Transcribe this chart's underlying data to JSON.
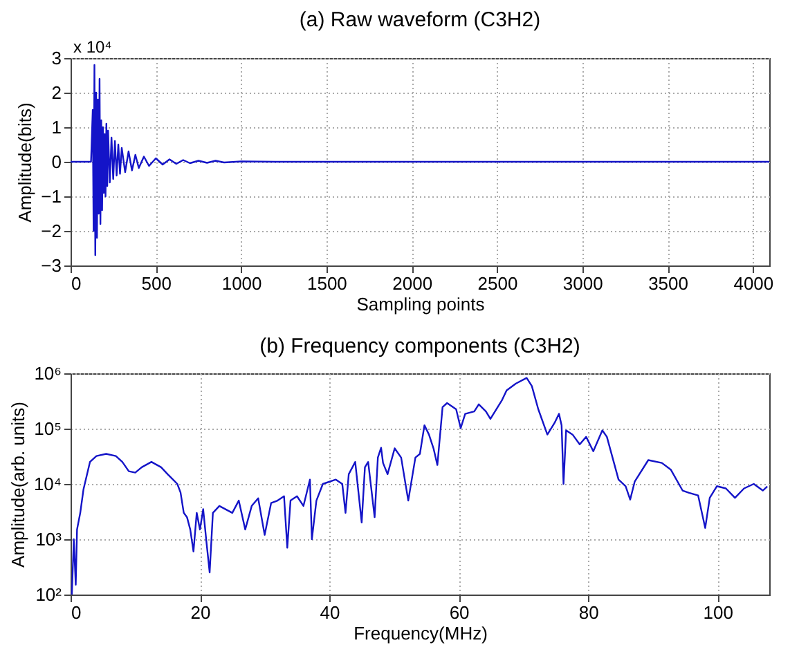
{
  "chart_data": [
    {
      "type": "line",
      "title": "(a) Raw waveform (C3H2)",
      "xlabel": "Sampling points",
      "ylabel": "Amplitude(bits)",
      "annotations": [
        "x 10⁴"
      ],
      "grid": true,
      "color": "#1414c8",
      "x": [
        0,
        120,
        130,
        135,
        140,
        145,
        150,
        155,
        160,
        165,
        170,
        175,
        180,
        185,
        190,
        195,
        200,
        205,
        210,
        215,
        220,
        230,
        240,
        250,
        260,
        270,
        280,
        290,
        300,
        320,
        340,
        360,
        380,
        400,
        430,
        460,
        500,
        540,
        580,
        620,
        660,
        700,
        750,
        800,
        850,
        900,
        1000,
        1200,
        4096
      ],
      "values": [
        0,
        0,
        1.5,
        -2,
        2.8,
        -2.7,
        2,
        -2.2,
        1.8,
        -1.5,
        2.4,
        -1.8,
        1.2,
        -1.4,
        1,
        -0.9,
        0.8,
        -1,
        1.1,
        -0.7,
        0.9,
        -0.6,
        0.7,
        -0.5,
        0.6,
        -0.4,
        0.5,
        -0.35,
        0.4,
        -0.3,
        0.3,
        -0.25,
        0.2,
        -0.18,
        0.15,
        -0.12,
        0.1,
        -0.08,
        0.07,
        -0.06,
        0.05,
        -0.04,
        0.03,
        -0.03,
        0.03,
        -0.02,
        0.01,
        0,
        0
      ],
      "xlim": [
        0,
        4096
      ],
      "xticks": [
        0,
        500,
        1000,
        1500,
        2000,
        2500,
        3000,
        3500,
        4000
      ],
      "ylim": [
        -3,
        3
      ],
      "yticks": [
        -3,
        -2,
        -1,
        0,
        1,
        2,
        3
      ]
    },
    {
      "type": "line",
      "title": "(b) Frequency components (C3H2)",
      "xlabel": "Frequency(MHz)",
      "ylabel": "Amplitude(arb. units)",
      "grid": true,
      "log": true,
      "color": "#1414c8",
      "x": [
        0.2,
        0.5,
        0.8,
        1,
        1.5,
        2,
        3,
        4,
        5.5,
        7,
        8,
        9,
        10,
        11,
        12.5,
        14,
        15,
        16.5,
        17,
        17.5,
        18,
        18.5,
        19,
        19.5,
        20,
        20.5,
        21,
        21.5,
        22,
        23,
        25,
        26,
        27,
        28,
        29,
        30,
        31,
        32,
        33,
        33.5,
        34,
        35,
        36,
        37,
        37.3,
        38,
        39,
        41,
        42,
        42.5,
        43,
        44,
        45,
        45.5,
        46,
        47,
        47.5,
        48,
        48.3,
        49,
        50.1,
        51.1,
        52.2,
        53.3,
        54,
        54.7,
        55.4,
        56.1,
        56.7,
        57.5,
        58.2,
        59.6,
        60.3,
        61,
        62.4,
        63.1,
        64.2,
        64.9,
        66.7,
        67.4,
        68.8,
        70.5,
        71.3,
        72.3,
        73.7,
        74.8,
        75.5,
        75.9,
        76.2,
        76.6,
        77.6,
        78.7,
        79.7,
        80.8,
        82.2,
        82.9,
        84.7,
        85.8,
        86.5,
        87.2,
        89.3,
        91.4,
        92.8,
        94.6,
        95.6,
        97,
        98.1,
        98.8,
        99.9,
        101.3,
        102.7,
        104.1,
        105.6,
        107,
        107.7
      ],
      "values": [
        100,
        1000,
        150,
        1500,
        3000,
        8000,
        25000,
        32000,
        35000,
        32000,
        25000,
        17000,
        16000,
        20000,
        25000,
        20000,
        15000,
        10000,
        7000,
        3000,
        2500,
        1500,
        600,
        3000,
        1500,
        3500,
        900,
        250,
        3000,
        4000,
        3000,
        5000,
        1500,
        4000,
        5500,
        1200,
        4500,
        5000,
        6000,
        700,
        5000,
        6000,
        4000,
        12000,
        1000,
        5000,
        10000,
        12000,
        10000,
        3000,
        15000,
        25000,
        2000,
        20000,
        25000,
        2500,
        30000,
        45000,
        24000,
        15000,
        44000,
        30000,
        5000,
        30000,
        35000,
        115000,
        78000,
        44000,
        22000,
        245000,
        290000,
        224000,
        102000,
        185000,
        205000,
        275000,
        205000,
        150000,
        330000,
        490000,
        650000,
        825000,
        590000,
        224000,
        78000,
        126000,
        185000,
        115000,
        10000,
        93000,
        78000,
        52000,
        71000,
        39000,
        93000,
        71000,
        12000,
        9100,
        5200,
        11000,
        27000,
        24000,
        18000,
        7600,
        6900,
        6200,
        1600,
        5600,
        9100,
        8300,
        5600,
        8300,
        10000,
        7600,
        9000
      ],
      "xlim": [
        0,
        108
      ],
      "xticks": [
        0,
        20,
        40,
        60,
        80,
        100
      ],
      "ylim": [
        100,
        1000000
      ],
      "yticks": [
        {
          "value": 100,
          "label": "10²"
        },
        {
          "value": 1000,
          "label": "10³"
        },
        {
          "value": 10000,
          "label": "10⁴"
        },
        {
          "value": 100000,
          "label": "10⁵"
        },
        {
          "value": 1000000,
          "label": "10⁶"
        }
      ]
    }
  ]
}
